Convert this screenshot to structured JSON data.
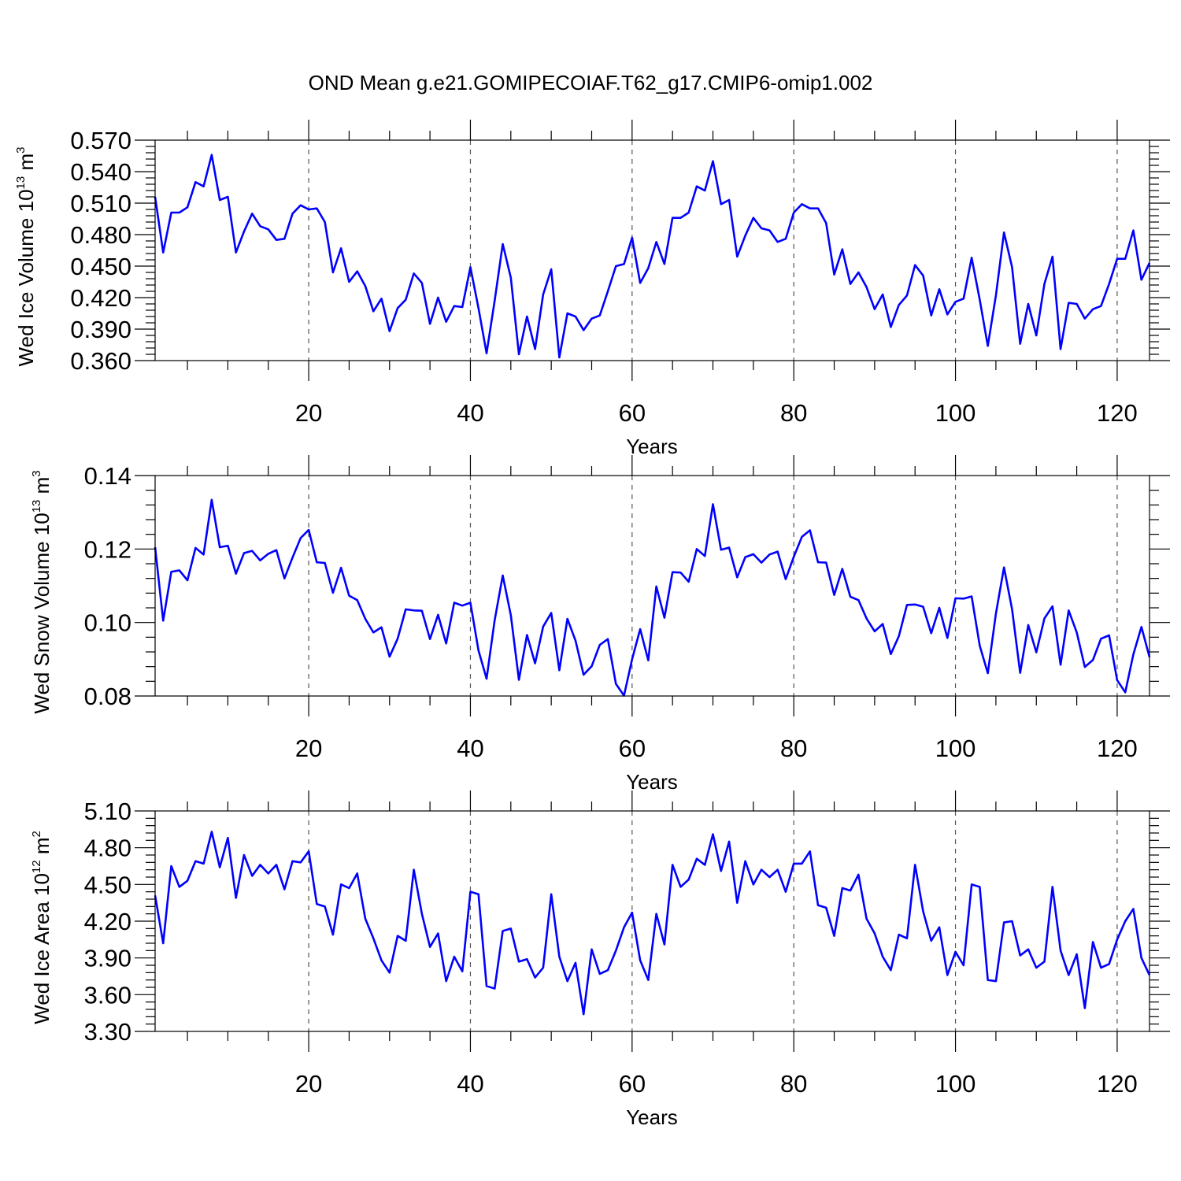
{
  "figure": {
    "title": "OND Mean g.e21.GOMIPECOIAF.T62_g17.CMIP6-omip1.002"
  },
  "chart_data": [
    {
      "type": "line",
      "title": "",
      "xlabel": "Years",
      "ylabel_main": "Wed Ice Volume 10",
      "ylabel_exp": "13",
      "ylabel_unit": " m",
      "ylabel_unit_exp": "3",
      "xlim": [
        1,
        124
      ],
      "ylim": [
        0.36,
        0.57
      ],
      "xticks": [
        20,
        40,
        60,
        80,
        100,
        120
      ],
      "xtick_labels": [
        "20",
        "40",
        "60",
        "80",
        "100",
        "120"
      ],
      "yticks": [
        0.36,
        0.39,
        0.42,
        0.45,
        0.48,
        0.51,
        0.54,
        0.57
      ],
      "ytick_labels": [
        "0.360",
        "0.390",
        "0.420",
        "0.450",
        "0.480",
        "0.510",
        "0.540",
        "0.570"
      ],
      "ygrid": false,
      "xgrid_dashed": true,
      "series": [
        {
          "name": "Wed Ice Volume",
          "color": "#0000ff",
          "x_start": 1,
          "values": [
            0.516,
            0.463,
            0.501,
            0.501,
            0.506,
            0.53,
            0.526,
            0.556,
            0.513,
            0.516,
            0.463,
            0.483,
            0.5,
            0.488,
            0.485,
            0.475,
            0.476,
            0.5,
            0.508,
            0.504,
            0.505,
            0.492,
            0.444,
            0.467,
            0.435,
            0.445,
            0.431,
            0.407,
            0.419,
            0.388,
            0.41,
            0.418,
            0.443,
            0.434,
            0.395,
            0.42,
            0.397,
            0.412,
            0.411,
            0.449,
            0.41,
            0.367,
            0.417,
            0.471,
            0.439,
            0.366,
            0.402,
            0.371,
            0.423,
            0.447,
            0.363,
            0.405,
            0.402,
            0.389,
            0.4,
            0.403,
            0.426,
            0.45,
            0.452,
            0.477,
            0.434,
            0.448,
            0.473,
            0.452,
            0.496,
            0.496,
            0.501,
            0.526,
            0.522,
            0.55,
            0.509,
            0.513,
            0.459,
            0.479,
            0.496,
            0.486,
            0.484,
            0.473,
            0.476,
            0.501,
            0.509,
            0.505,
            0.505,
            0.491,
            0.442,
            0.466,
            0.433,
            0.444,
            0.43,
            0.409,
            0.423,
            0.392,
            0.413,
            0.422,
            0.451,
            0.441,
            0.403,
            0.428,
            0.404,
            0.416,
            0.419,
            0.458,
            0.418,
            0.374,
            0.422,
            0.482,
            0.449,
            0.376,
            0.414,
            0.384,
            0.433,
            0.459,
            0.371,
            0.415,
            0.414,
            0.4,
            0.409,
            0.412,
            0.433,
            0.457,
            0.457,
            0.484,
            0.437,
            0.453
          ]
        }
      ]
    },
    {
      "type": "line",
      "title": "",
      "xlabel": "Years",
      "ylabel_main": "Wed Snow Volume 10",
      "ylabel_exp": "13",
      "ylabel_unit": " m",
      "ylabel_unit_exp": "3",
      "xlim": [
        1,
        124
      ],
      "ylim": [
        0.08,
        0.14
      ],
      "xticks": [
        20,
        40,
        60,
        80,
        100,
        120
      ],
      "xtick_labels": [
        "20",
        "40",
        "60",
        "80",
        "100",
        "120"
      ],
      "yticks": [
        0.08,
        0.1,
        0.12,
        0.14
      ],
      "ytick_labels": [
        "0.08",
        "0.10",
        "0.12",
        "0.14"
      ],
      "ygrid": false,
      "xgrid_dashed": true,
      "series": [
        {
          "name": "Wed Snow Volume",
          "color": "#0000ff",
          "x_start": 1,
          "values": [
            0.1205,
            0.1005,
            0.1138,
            0.1142,
            0.1115,
            0.1203,
            0.1185,
            0.1334,
            0.1205,
            0.1209,
            0.1133,
            0.1189,
            0.1195,
            0.1169,
            0.1187,
            0.1197,
            0.112,
            0.1177,
            0.123,
            0.1252,
            0.1164,
            0.1162,
            0.1081,
            0.1149,
            0.1073,
            0.1061,
            0.101,
            0.0973,
            0.0987,
            0.0907,
            0.0956,
            0.1036,
            0.1033,
            0.1032,
            0.0955,
            0.1021,
            0.0943,
            0.1054,
            0.1046,
            0.1054,
            0.0924,
            0.0847,
            0.1006,
            0.1128,
            0.102,
            0.0844,
            0.0966,
            0.0889,
            0.0989,
            0.1026,
            0.087,
            0.101,
            0.0951,
            0.0858,
            0.0881,
            0.0939,
            0.0955,
            0.0833,
            0.0801,
            0.09,
            0.0982,
            0.0897,
            0.1098,
            0.1013,
            0.1137,
            0.1136,
            0.1111,
            0.12,
            0.1181,
            0.1322,
            0.1198,
            0.1204,
            0.1123,
            0.1178,
            0.1186,
            0.1163,
            0.1185,
            0.1193,
            0.1118,
            0.1179,
            0.1233,
            0.1251,
            0.1164,
            0.1163,
            0.1075,
            0.1146,
            0.107,
            0.1061,
            0.1011,
            0.0976,
            0.0996,
            0.0914,
            0.0963,
            0.1048,
            0.1049,
            0.1043,
            0.0971,
            0.104,
            0.0958,
            0.1066,
            0.1065,
            0.1071,
            0.0937,
            0.0862,
            0.1024,
            0.115,
            0.1036,
            0.0863,
            0.0993,
            0.0919,
            0.1011,
            0.1044,
            0.0885,
            0.1033,
            0.0973,
            0.0879,
            0.0898,
            0.0956,
            0.0965,
            0.0843,
            0.081,
            0.0913,
            0.0988,
            0.0906
          ]
        }
      ]
    },
    {
      "type": "line",
      "title": "",
      "xlabel": "Years",
      "ylabel_main": "Wed Ice Area 10",
      "ylabel_exp": "12",
      "ylabel_unit": " m",
      "ylabel_unit_exp": "2",
      "xlim": [
        1,
        124
      ],
      "ylim": [
        3.3,
        5.1
      ],
      "xticks": [
        20,
        40,
        60,
        80,
        100,
        120
      ],
      "xtick_labels": [
        "20",
        "40",
        "60",
        "80",
        "100",
        "120"
      ],
      "yticks": [
        3.3,
        3.6,
        3.9,
        4.2,
        4.5,
        4.8,
        5.1
      ],
      "ytick_labels": [
        "3.30",
        "3.60",
        "3.90",
        "4.20",
        "4.50",
        "4.80",
        "5.10"
      ],
      "ygrid": false,
      "xgrid_dashed": true,
      "series": [
        {
          "name": "Wed Ice Area",
          "color": "#0000ff",
          "x_start": 1,
          "values": [
            4.41,
            4.02,
            4.65,
            4.48,
            4.53,
            4.69,
            4.67,
            4.93,
            4.64,
            4.88,
            4.39,
            4.74,
            4.57,
            4.66,
            4.59,
            4.66,
            4.46,
            4.69,
            4.68,
            4.77,
            4.34,
            4.32,
            4.09,
            4.5,
            4.47,
            4.59,
            4.22,
            4.06,
            3.88,
            3.78,
            4.08,
            4.04,
            4.62,
            4.26,
            3.99,
            4.1,
            3.71,
            3.91,
            3.79,
            4.44,
            4.42,
            3.67,
            3.65,
            4.12,
            4.14,
            3.87,
            3.89,
            3.74,
            3.82,
            4.42,
            3.91,
            3.71,
            3.86,
            3.44,
            3.97,
            3.77,
            3.8,
            3.96,
            4.15,
            4.27,
            3.88,
            3.72,
            4.26,
            4.01,
            4.66,
            4.48,
            4.54,
            4.71,
            4.66,
            4.91,
            4.61,
            4.85,
            4.35,
            4.69,
            4.5,
            4.62,
            4.56,
            4.62,
            4.44,
            4.67,
            4.67,
            4.77,
            4.33,
            4.31,
            4.08,
            4.47,
            4.45,
            4.58,
            4.22,
            4.1,
            3.91,
            3.8,
            4.09,
            4.06,
            4.66,
            4.28,
            4.04,
            4.15,
            3.76,
            3.95,
            3.84,
            4.5,
            4.48,
            3.72,
            3.71,
            4.19,
            4.2,
            3.92,
            3.97,
            3.82,
            3.87,
            4.48,
            3.96,
            3.76,
            3.93,
            3.49,
            4.03,
            3.82,
            3.85,
            4.05,
            4.2,
            4.3,
            3.9,
            3.76
          ]
        }
      ]
    }
  ]
}
